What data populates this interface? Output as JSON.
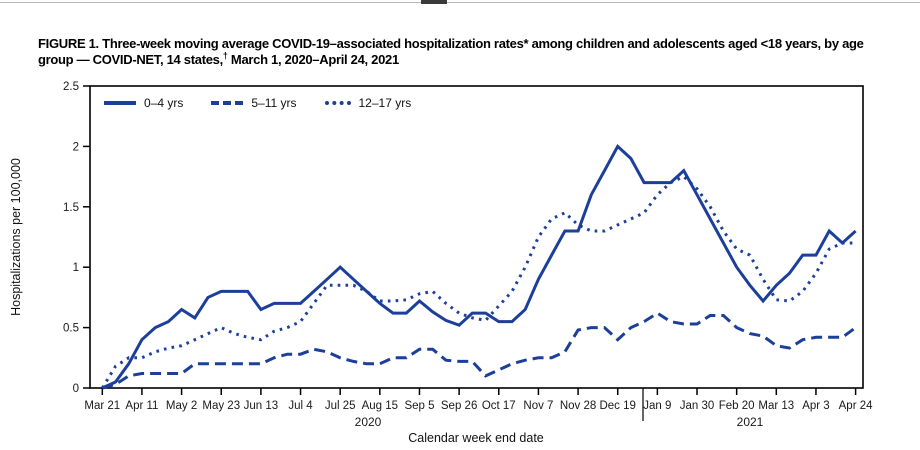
{
  "title": {
    "pre": "FIGURE 1. Three-week moving average COVID-19–associated hospitalization rates* among children and adolescents aged <18 years, by age group — COVID-NET, 14 states,",
    "sup": "†",
    "post": " March 1, 2020–April 24, 2021"
  },
  "chart_data": {
    "type": "line",
    "xlabel": "Calendar week end date",
    "ylabel": "Hospitalizations per 100,000",
    "ylim": [
      0,
      2.5
    ],
    "y_tick_labels": [
      "0",
      "0.5",
      "1",
      "1.5",
      "2",
      "2.5"
    ],
    "y_ticks": [
      0,
      0.5,
      1,
      1.5,
      2,
      2.5
    ],
    "x_tick_labels": [
      "Mar 21",
      "Apr 11",
      "May 2",
      "May 23",
      "Jun 13",
      "Jul 4",
      "Jul 25",
      "Aug 15",
      "Sep 5",
      "Sep 26",
      "Oct 17",
      "Nov 7",
      "Nov 28",
      "Dec 19",
      "Jan 9",
      "Jan 30",
      "Feb 20",
      "Mar 13",
      "Apr 3",
      "Apr 24"
    ],
    "x_ticks_every_n_weeks": 3,
    "x_resolution": "weekly",
    "year_labels": [
      "2020",
      "2021"
    ],
    "grid": false,
    "legend_position": "top-left-inside",
    "line_color": "#1b3f9b",
    "axis_color": "#000000",
    "series": [
      {
        "name": "0–4 yrs",
        "style": "solid",
        "values": [
          0.0,
          0.05,
          0.2,
          0.4,
          0.5,
          0.55,
          0.65,
          0.58,
          0.75,
          0.8,
          0.8,
          0.8,
          0.65,
          0.7,
          0.7,
          0.7,
          0.8,
          0.9,
          1.0,
          0.9,
          0.8,
          0.7,
          0.62,
          0.62,
          0.72,
          0.63,
          0.56,
          0.52,
          0.62,
          0.62,
          0.55,
          0.55,
          0.65,
          0.9,
          1.1,
          1.3,
          1.3,
          1.6,
          1.8,
          2.0,
          1.9,
          1.7,
          1.7,
          1.7,
          1.8,
          1.6,
          1.4,
          1.2,
          1.0,
          0.85,
          0.72,
          0.85,
          0.95,
          1.1,
          1.1,
          1.3,
          1.2,
          1.3
        ]
      },
      {
        "name": "5–11 yrs",
        "style": "dashed",
        "values": [
          0.0,
          0.03,
          0.1,
          0.12,
          0.12,
          0.12,
          0.12,
          0.2,
          0.2,
          0.2,
          0.2,
          0.2,
          0.2,
          0.25,
          0.28,
          0.28,
          0.32,
          0.3,
          0.25,
          0.22,
          0.2,
          0.2,
          0.25,
          0.25,
          0.32,
          0.32,
          0.23,
          0.22,
          0.22,
          0.1,
          0.15,
          0.2,
          0.23,
          0.25,
          0.25,
          0.3,
          0.48,
          0.5,
          0.5,
          0.4,
          0.5,
          0.55,
          0.62,
          0.55,
          0.53,
          0.53,
          0.6,
          0.6,
          0.5,
          0.45,
          0.43,
          0.35,
          0.33,
          0.4,
          0.42,
          0.42,
          0.42,
          0.5
        ]
      },
      {
        "name": "12–17 yrs",
        "style": "dotted",
        "values": [
          0.0,
          0.18,
          0.25,
          0.25,
          0.3,
          0.33,
          0.35,
          0.4,
          0.45,
          0.5,
          0.45,
          0.42,
          0.4,
          0.47,
          0.5,
          0.55,
          0.7,
          0.85,
          0.85,
          0.85,
          0.8,
          0.72,
          0.72,
          0.73,
          0.78,
          0.8,
          0.7,
          0.62,
          0.58,
          0.56,
          0.68,
          0.8,
          1.0,
          1.25,
          1.4,
          1.45,
          1.35,
          1.3,
          1.3,
          1.35,
          1.4,
          1.45,
          1.6,
          1.7,
          1.75,
          1.65,
          1.5,
          1.3,
          1.15,
          1.1,
          0.9,
          0.73,
          0.72,
          0.8,
          0.95,
          1.15,
          1.2,
          1.2
        ]
      }
    ]
  }
}
